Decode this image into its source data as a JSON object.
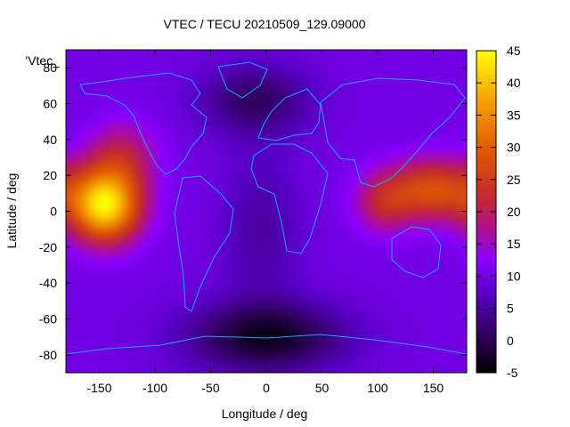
{
  "chart_data": {
    "type": "heatmap",
    "title": "VTEC / TECU 20210509_129.09000",
    "xlabel": "Longitude / deg",
    "ylabel": "Latitude / deg",
    "series_label": "'Vtec_",
    "xlim": [
      -180,
      180
    ],
    "ylim": [
      -90,
      90
    ],
    "xticks": [
      -150,
      -100,
      -50,
      0,
      50,
      100,
      150
    ],
    "yticks": [
      -80,
      -60,
      -40,
      -20,
      0,
      20,
      40,
      60,
      80
    ],
    "colorbar": {
      "range": [
        -5,
        45
      ],
      "ticks": [
        -5,
        0,
        5,
        10,
        15,
        20,
        25,
        30,
        35,
        40,
        45
      ]
    },
    "background_vtec": 10,
    "features": [
      {
        "name": "equatorial-anomaly-pacific",
        "lon": -145,
        "lat": 3,
        "peak_vtec": 43
      },
      {
        "name": "equatorial-anomaly-west-pacific",
        "lon": 150,
        "lat": 12,
        "peak_vtec": 28
      },
      {
        "name": "equatorial-anomaly-india",
        "lon": 105,
        "lat": 5,
        "peak_vtec": 20
      },
      {
        "name": "north-pacific-enhancement",
        "lon": -130,
        "lat": 30,
        "peak_vtec": 20
      },
      {
        "name": "high-latitude-low-north",
        "lon": -10,
        "lat": 62,
        "peak_vtec": 1
      },
      {
        "name": "high-latitude-low-south",
        "lon": 0,
        "lat": -70,
        "peak_vtec": -3
      },
      {
        "name": "atlantic-low",
        "lon": -5,
        "lat": -10,
        "peak_vtec": 5
      }
    ]
  },
  "colors": {
    "coastline": "#17a8ff",
    "axis": "#000000"
  }
}
